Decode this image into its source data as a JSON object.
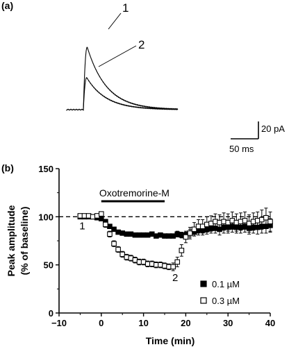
{
  "panels": {
    "a_label": "(a)",
    "b_label": "(b)"
  },
  "chart_data": [
    {
      "panel": "(a)",
      "type": "line",
      "description_note": "",
      "trace_labels": [
        "1",
        "2"
      ],
      "traces": [
        {
          "label": "1",
          "peak_pA": 72,
          "onset_ms": 0,
          "time_to_peak_ms": 7,
          "decay_tau_ms": 35
        },
        {
          "label": "2",
          "peak_pA": 37,
          "onset_ms": 0,
          "time_to_peak_ms": 6,
          "decay_tau_ms": 35
        }
      ],
      "scale_bar": {
        "time_value": 50,
        "time_unit": "ms",
        "time_label": "50 ms",
        "amplitude_value": 20,
        "amplitude_unit": "pA",
        "amplitude_label": "20 pA"
      }
    },
    {
      "panel": "(b)",
      "type": "scatter",
      "xlabel": "Time (min)",
      "ylabel_line1": "Peak amplitude",
      "ylabel_line2": "(% of baseline)",
      "xlim": [
        -10,
        40
      ],
      "ylim": [
        0,
        150
      ],
      "xticks": [
        -10,
        0,
        10,
        20,
        30,
        40
      ],
      "yticks": [
        0,
        50,
        100,
        150
      ],
      "baseline": 100,
      "drug_bar": {
        "label": "Oxotremorine-M",
        "start": 0,
        "end": 15
      },
      "annotations": [
        {
          "text": "1",
          "x": -4.5,
          "y": 87
        },
        {
          "text": "2",
          "x": 17.5,
          "y": 33
        }
      ],
      "series": [
        {
          "name": "0.1 µM",
          "marker": "filled-square",
          "x": [
            -5,
            -4,
            -3,
            -2,
            -1,
            0,
            1,
            2,
            3,
            4,
            5,
            6,
            7,
            8,
            9,
            10,
            11,
            12,
            13,
            14,
            15,
            16,
            17,
            18,
            19,
            20,
            21,
            22,
            23,
            24,
            25,
            26,
            27,
            28,
            29,
            30,
            31,
            32,
            33,
            34,
            35,
            36,
            37,
            38,
            39,
            40
          ],
          "y": [
            100,
            100,
            100,
            100,
            99,
            98,
            95,
            90,
            87,
            84,
            83,
            82,
            82,
            81,
            81,
            81,
            81,
            82,
            80,
            81,
            80,
            80,
            80,
            82,
            81,
            81,
            83,
            84,
            86,
            86,
            87,
            88,
            88,
            87,
            89,
            89,
            90,
            89,
            89,
            90,
            88,
            89,
            89,
            90,
            90,
            91
          ],
          "err": [
            1,
            1,
            1,
            1,
            1,
            2,
            2,
            2,
            2,
            2,
            2,
            2,
            2,
            2,
            2,
            2,
            2,
            2,
            2,
            2,
            2,
            2,
            2,
            3,
            3,
            3,
            4,
            4,
            5,
            5,
            5,
            5,
            5,
            6,
            6,
            6,
            6,
            6,
            6,
            6,
            6,
            6,
            7,
            7,
            7,
            7
          ]
        },
        {
          "name": "0.3 µM",
          "marker": "open-square",
          "x": [
            -5,
            -4,
            -3,
            -2,
            -1,
            0,
            1,
            2,
            3,
            4,
            5,
            6,
            7,
            8,
            9,
            10,
            11,
            12,
            13,
            14,
            15,
            16,
            17,
            18,
            19,
            20,
            21,
            22,
            23,
            24,
            25,
            26,
            27,
            28,
            29,
            30,
            31,
            32,
            33,
            34,
            35,
            36,
            37,
            38,
            39,
            40
          ],
          "y": [
            101,
            101,
            101,
            100,
            101,
            103,
            92,
            82,
            72,
            66,
            61,
            58,
            57,
            55,
            53,
            53,
            51,
            51,
            50,
            50,
            49,
            48,
            48,
            53,
            65,
            79,
            83,
            87,
            90,
            90,
            92,
            93,
            95,
            94,
            95,
            94,
            96,
            94,
            95,
            96,
            93,
            95,
            96,
            97,
            99,
            95
          ],
          "err": [
            1,
            1,
            1,
            1,
            1,
            2,
            3,
            3,
            3,
            3,
            3,
            3,
            3,
            3,
            3,
            3,
            3,
            3,
            3,
            3,
            3,
            3,
            4,
            5,
            6,
            6,
            6,
            7,
            7,
            7,
            8,
            8,
            8,
            8,
            9,
            9,
            9,
            9,
            9,
            9,
            9,
            9,
            9,
            10,
            10,
            10
          ]
        }
      ],
      "legend": [
        {
          "marker": "filled-square",
          "label": "0.1 µM"
        },
        {
          "marker": "open-square",
          "label": "0.3 µM"
        }
      ]
    }
  ]
}
